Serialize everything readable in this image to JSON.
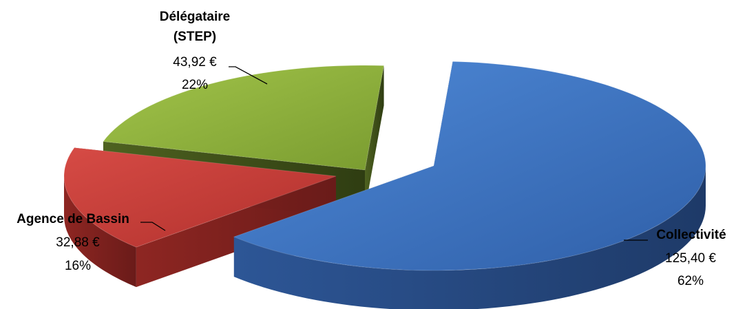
{
  "chart_data": {
    "type": "pie",
    "title": "",
    "three_d": true,
    "exploded": true,
    "slices": [
      {
        "name": "Collectivité",
        "value": 125.4,
        "value_label": "125,40 €",
        "percent_label": "62%",
        "color": "#3a6fc4"
      },
      {
        "name": "Agence de Bassin",
        "value": 32.88,
        "value_label": "32,88 €",
        "percent_label": "16%",
        "color": "#c23a36"
      },
      {
        "name": "Délégataire (STEP)",
        "name_lines": [
          "Délégataire",
          "(STEP)"
        ],
        "value": 43.92,
        "value_label": "43,92 €",
        "percent_label": "22%",
        "color": "#8db03b"
      }
    ]
  }
}
